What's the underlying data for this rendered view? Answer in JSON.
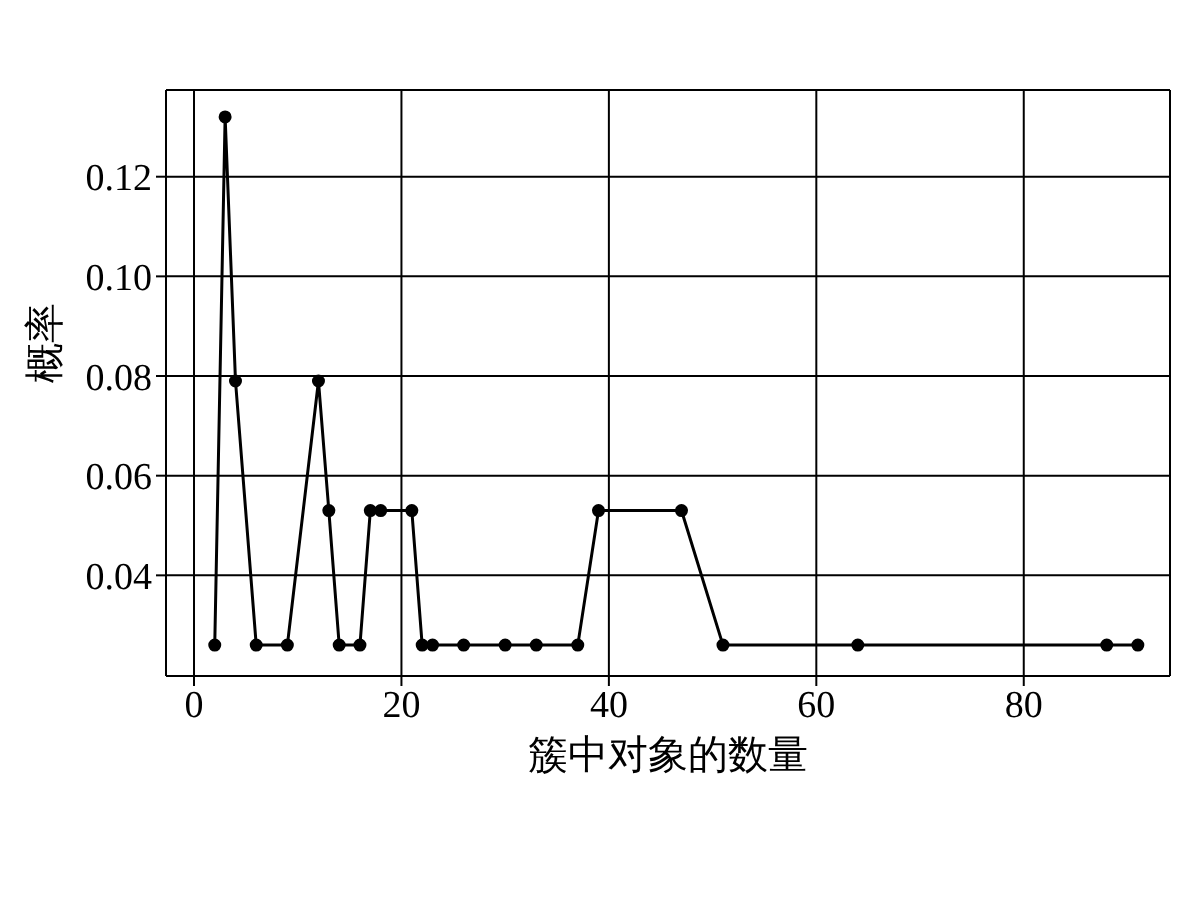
{
  "chart_data": {
    "type": "line",
    "xlabel": "簇中对象的数量",
    "ylabel": "概率",
    "x": [
      2,
      3,
      4,
      6,
      9,
      12,
      13,
      14,
      16,
      17,
      18,
      21,
      22,
      23,
      26,
      30,
      33,
      37,
      39,
      47,
      51,
      64,
      88,
      91
    ],
    "series": [
      {
        "color": "#000000",
        "values": [
          0.026,
          0.132,
          0.079,
          0.026,
          0.026,
          0.079,
          0.053,
          0.026,
          0.026,
          0.053,
          0.053,
          0.053,
          0.026,
          0.026,
          0.026,
          0.026,
          0.026,
          0.026,
          0.053,
          0.053,
          0.026,
          0.026,
          0.026,
          0.026
        ]
      }
    ],
    "xlim": [
      -2.7,
      94.1
    ],
    "ylim": [
      0.0198,
      0.1374
    ],
    "xticks": [
      0,
      20,
      40,
      60,
      80
    ],
    "yticks": [
      0.04,
      0.06,
      0.08,
      {
        "value": 0.1,
        "label": "0.10"
      },
      0.12
    ],
    "grid": true,
    "legend": false,
    "marker": "circle",
    "line_style": "solid"
  }
}
